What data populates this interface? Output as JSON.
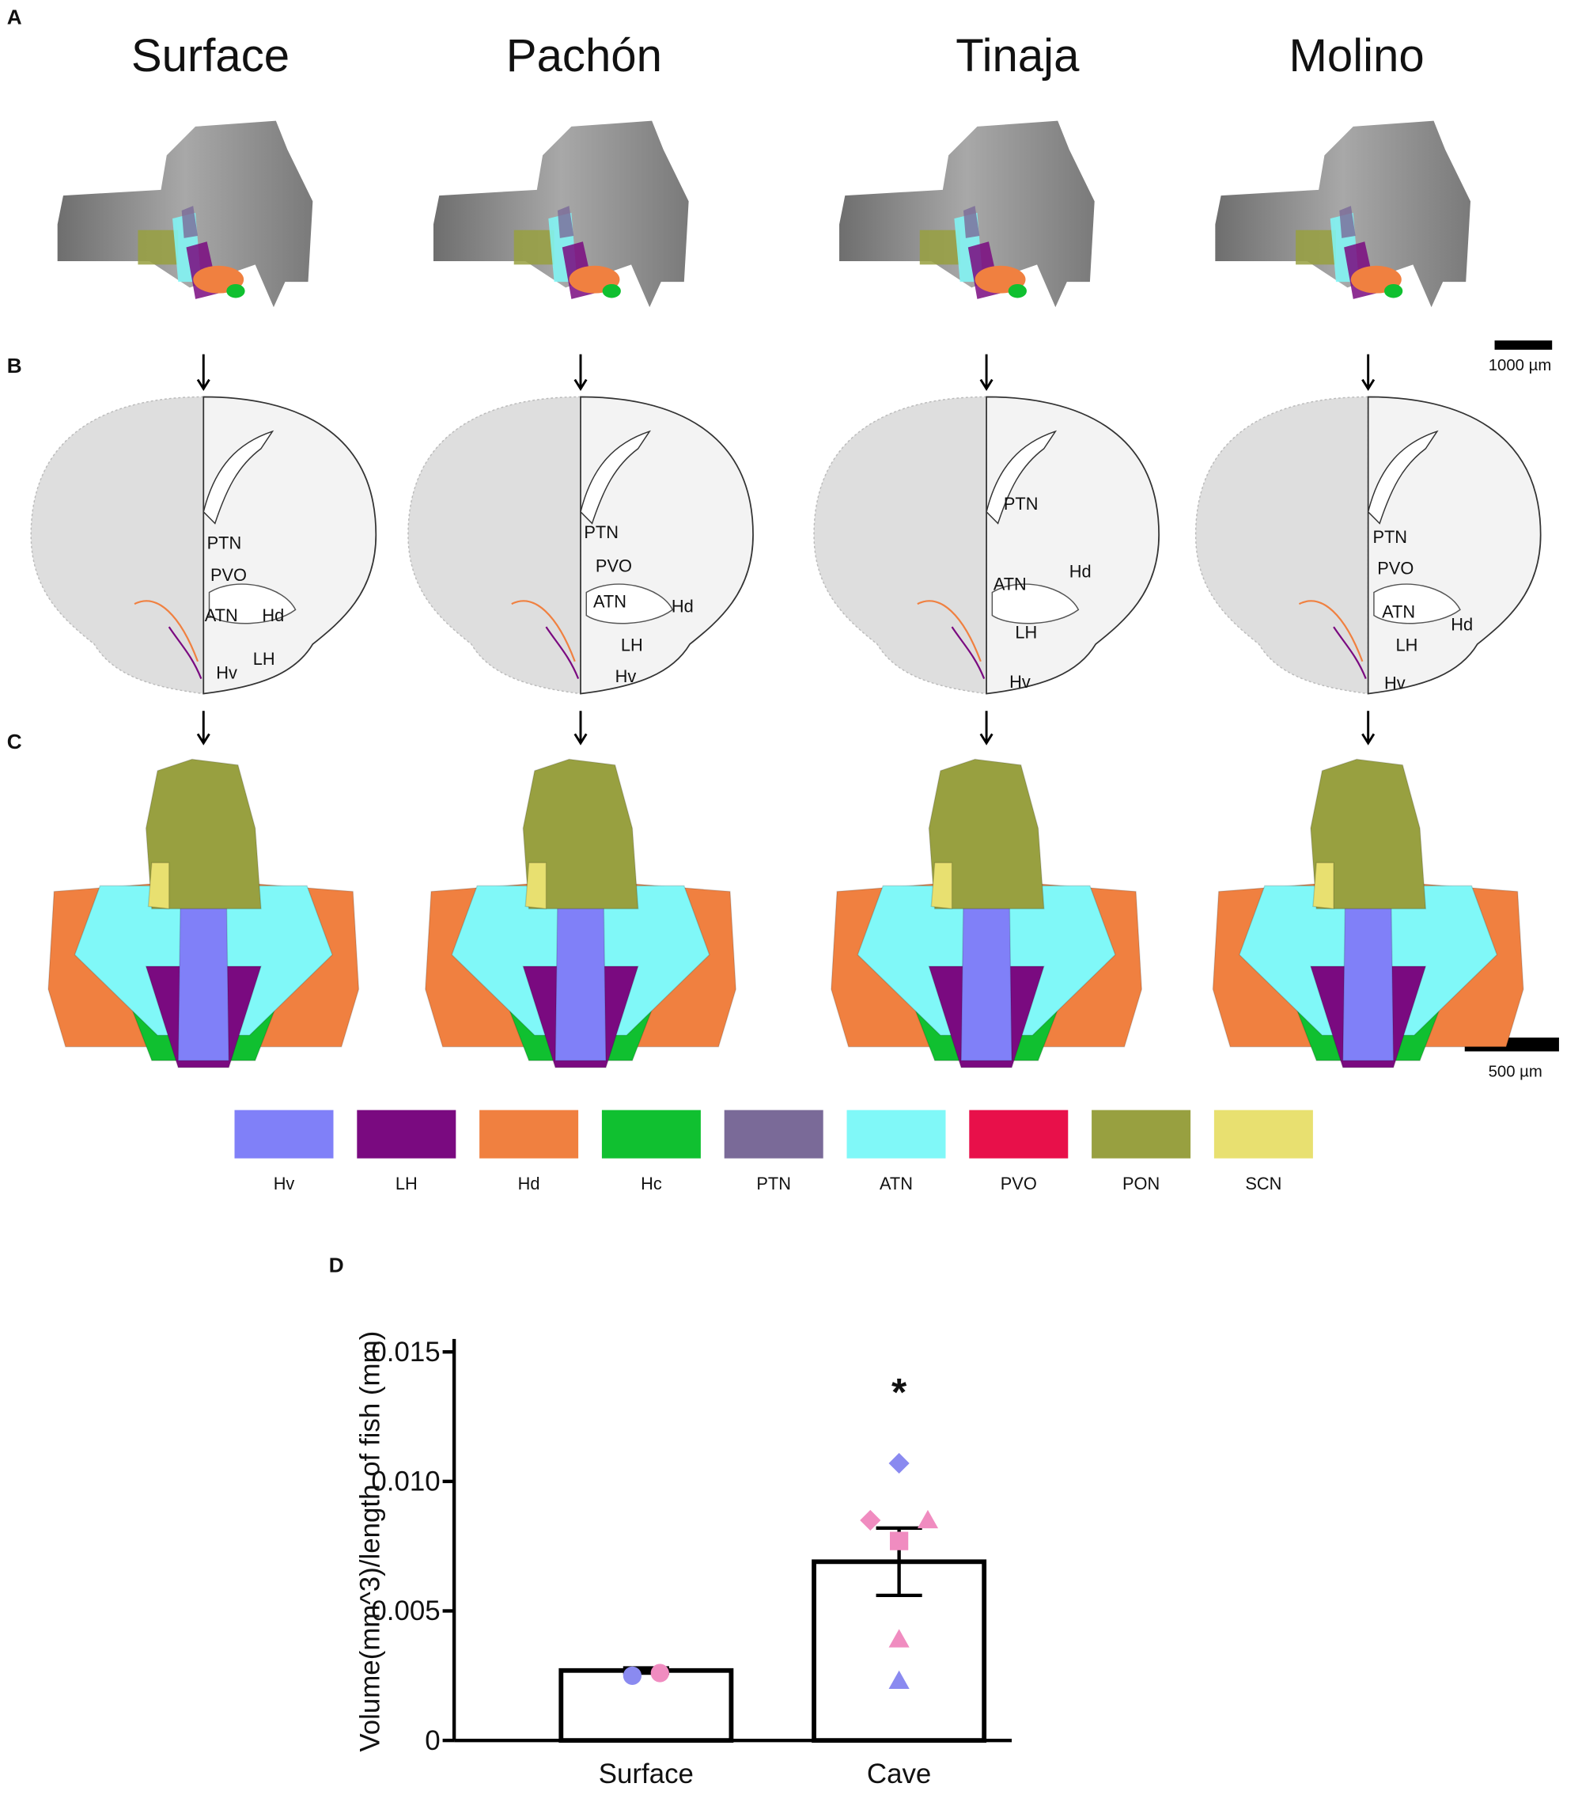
{
  "panel_labels": [
    "A",
    "B",
    "C",
    "D"
  ],
  "strains": [
    "Surface",
    "Pachón",
    "Tinaja",
    "Molino"
  ],
  "scale_bars": [
    "1000 µm",
    "500 µm"
  ],
  "sections": [
    {
      "labels": [
        "PTN",
        "PVO",
        "ATN",
        "Hd",
        "LH",
        "Hv"
      ]
    },
    {
      "labels": [
        "PTN",
        "PVO",
        "ATN",
        "Hd",
        "LH",
        "Hv"
      ]
    },
    {
      "labels": [
        "PTN",
        "Hd",
        "ATN",
        "LH",
        "Hv"
      ]
    },
    {
      "labels": [
        "PTN",
        "PVO",
        "ATN",
        "Hd",
        "LH",
        "Hv"
      ]
    }
  ],
  "legend": [
    {
      "label": "Hv",
      "color": "#8080f8"
    },
    {
      "label": "LH",
      "color": "#7a0a80"
    },
    {
      "label": "Hd",
      "color": "#f08040"
    },
    {
      "label": "Hc",
      "color": "#10c030"
    },
    {
      "label": "PTN",
      "color": "#7a6a98"
    },
    {
      "label": "ATN",
      "color": "#80f8f8"
    },
    {
      "label": "PVO",
      "color": "#e8104a"
    },
    {
      "label": "PON",
      "color": "#98a040"
    },
    {
      "label": "SCN",
      "color": "#e8e070"
    }
  ],
  "chart_data": {
    "type": "bar",
    "y_label": "Volume(mm^3)/length of fish (mm)",
    "categories": [
      "Surface",
      "Cave"
    ],
    "values": [
      0.0027,
      0.0069
    ],
    "errors": [
      0.0001,
      0.0013
    ],
    "annotation": "*",
    "color": "#ffffff",
    "edge_color": "#000000",
    "ylim": [
      0,
      0.0155
    ],
    "yticks": [
      0,
      0.005,
      {
        "value": 0.01,
        "label": "0.010"
      },
      0.015
    ],
    "points": {
      "x": [
        "Surface",
        "Surface",
        "Cave",
        "Cave",
        "Cave",
        "Cave",
        "Cave",
        "Cave"
      ],
      "values": [
        0.0025,
        0.0026,
        0.0107,
        0.0085,
        0.0085,
        0.0077,
        0.0039,
        0.0023
      ],
      "colors": [
        "#8a8af0",
        "#f08cc0",
        "#8a8af0",
        "#f08cc0",
        "#f08cc0",
        "#f08cc0",
        "#f08cc0",
        "#8a8af0"
      ],
      "shapes": [
        "circle",
        "circle",
        "diamond",
        "diamond",
        "triangle",
        "square",
        "triangle",
        "triangle"
      ]
    }
  }
}
